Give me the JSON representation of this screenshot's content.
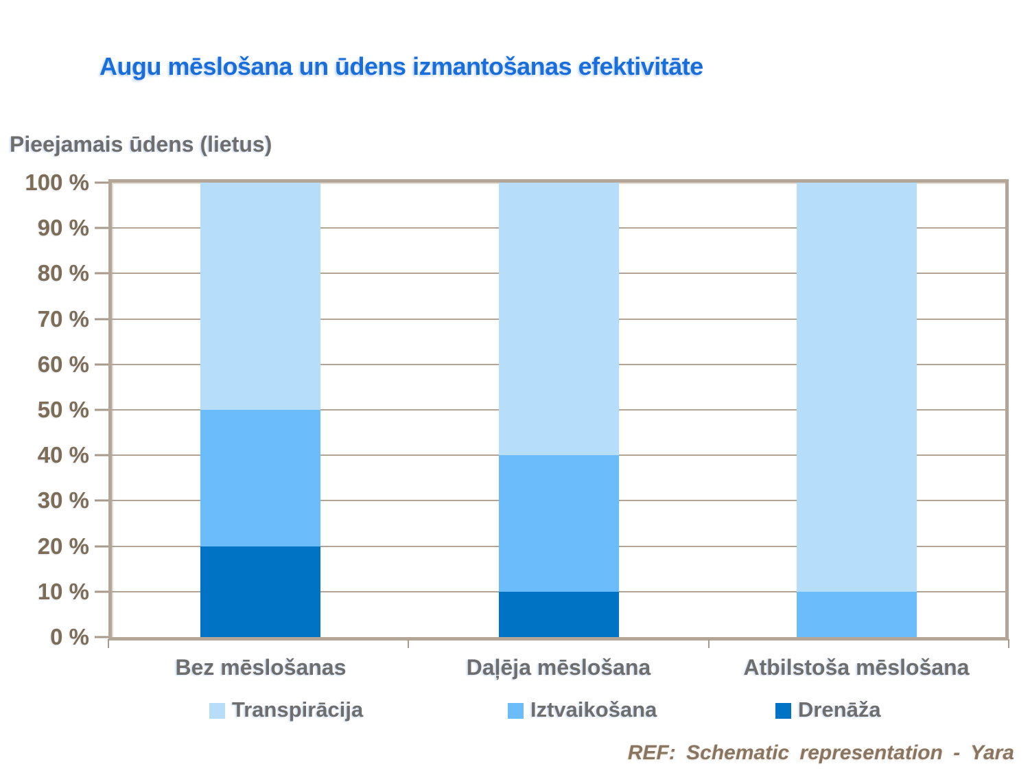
{
  "chart_data": {
    "type": "bar",
    "stacked": true,
    "title": "Augu mēslošana un ūdens izmantošanas efektivitāte",
    "ylabel": "Pieejamais ūdens (lietus)",
    "xlabel": "",
    "categories": [
      "Bez mēslošanas",
      "Daļēja mēslošana",
      "Atbilstoša mēslošana"
    ],
    "series": [
      {
        "name": "Drenāža",
        "color": "#0073C4",
        "values": [
          20,
          10,
          0
        ]
      },
      {
        "name": "Iztvaikošana",
        "color": "#6BBCFB",
        "values": [
          30,
          30,
          10
        ]
      },
      {
        "name": "Transpirācija",
        "color": "#B6DEFB",
        "values": [
          50,
          60,
          90
        ]
      }
    ],
    "y_axis": {
      "min": 0,
      "max": 100,
      "step": 10,
      "tick_labels": [
        "0 %",
        "10 %",
        "20 %",
        "30 %",
        "40 %",
        "50 %",
        "60 %",
        "70 %",
        "80 %",
        "90 %",
        "100 %"
      ]
    },
    "grid": true,
    "legend_position": "bottom",
    "legend": [
      {
        "label": "Transpirācija",
        "color": "#B6DEFB"
      },
      {
        "label": "Iztvaikošana",
        "color": "#6BBCFB"
      },
      {
        "label": "Drenāža",
        "color": "#0073C4"
      }
    ]
  },
  "footer": {
    "ref_text": "REF: Schematic representation - Yara"
  },
  "colors": {
    "title_text": "#1A6EDB",
    "axis_text": "#7D6C56",
    "label_text": "#6E6E6E",
    "gridline": "#B2A494",
    "plot_border": "#B4A697",
    "footer_text": "#8A7560"
  }
}
